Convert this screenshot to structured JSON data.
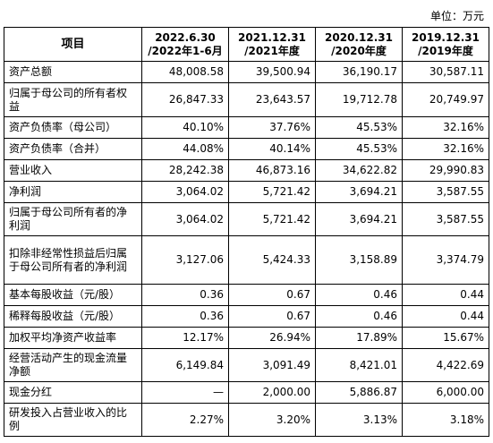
{
  "unit": "单位：万元",
  "header": {
    "item": "项目",
    "cols": [
      {
        "line1": "2022.6.30",
        "line2": "/2022年1-6月"
      },
      {
        "line1": "2021.12.31",
        "line2": "/2021年度"
      },
      {
        "line1": "2020.12.31",
        "line2": "/2020年度"
      },
      {
        "line1": "2019.12.31",
        "line2": "/2019年度"
      }
    ]
  },
  "rows": [
    {
      "label": "资产总额",
      "values": [
        "48,008.58",
        "39,500.94",
        "36,190.17",
        "30,587.11"
      ]
    },
    {
      "label": "归属于母公司的所有者权益",
      "values": [
        "26,847.33",
        "23,643.57",
        "19,712.78",
        "20,749.97"
      ]
    },
    {
      "label": "资产负债率（母公司）",
      "values": [
        "40.10%",
        "37.76%",
        "45.53%",
        "32.16%"
      ]
    },
    {
      "label": "资产负债率（合并）",
      "values": [
        "44.08%",
        "40.14%",
        "45.53%",
        "32.16%"
      ]
    },
    {
      "label": "营业收入",
      "values": [
        "28,242.38",
        "46,873.16",
        "34,622.82",
        "29,990.83"
      ]
    },
    {
      "label": "净利润",
      "values": [
        "3,064.02",
        "5,721.42",
        "3,694.21",
        "3,587.55"
      ]
    },
    {
      "label": "归属于母公司所有者的净利润",
      "values": [
        "3,064.02",
        "5,721.42",
        "3,694.21",
        "3,587.55"
      ]
    },
    {
      "label": "扣除非经常性损益后归属于母公司所有者的净利润",
      "values": [
        "3,127.06",
        "5,424.33",
        "3,158.89",
        "3,374.79"
      ]
    },
    {
      "label": "基本每股收益（元/股）",
      "values": [
        "0.36",
        "0.67",
        "0.46",
        "0.44"
      ]
    },
    {
      "label": "稀释每股收益（元/股）",
      "values": [
        "0.36",
        "0.67",
        "0.46",
        "0.44"
      ]
    },
    {
      "label": "加权平均净资产收益率",
      "values": [
        "12.17%",
        "26.94%",
        "17.89%",
        "15.67%"
      ]
    },
    {
      "label": "经营活动产生的现金流量净额",
      "values": [
        "6,149.84",
        "3,091.49",
        "8,421.01",
        "4,422.69"
      ]
    },
    {
      "label": "现金分红",
      "values": [
        "—",
        "2,000.00",
        "5,886.87",
        "6,000.00"
      ]
    },
    {
      "label": "研发投入占营业收入的比例",
      "values": [
        "2.27%",
        "3.20%",
        "3.13%",
        "3.18%"
      ]
    }
  ]
}
